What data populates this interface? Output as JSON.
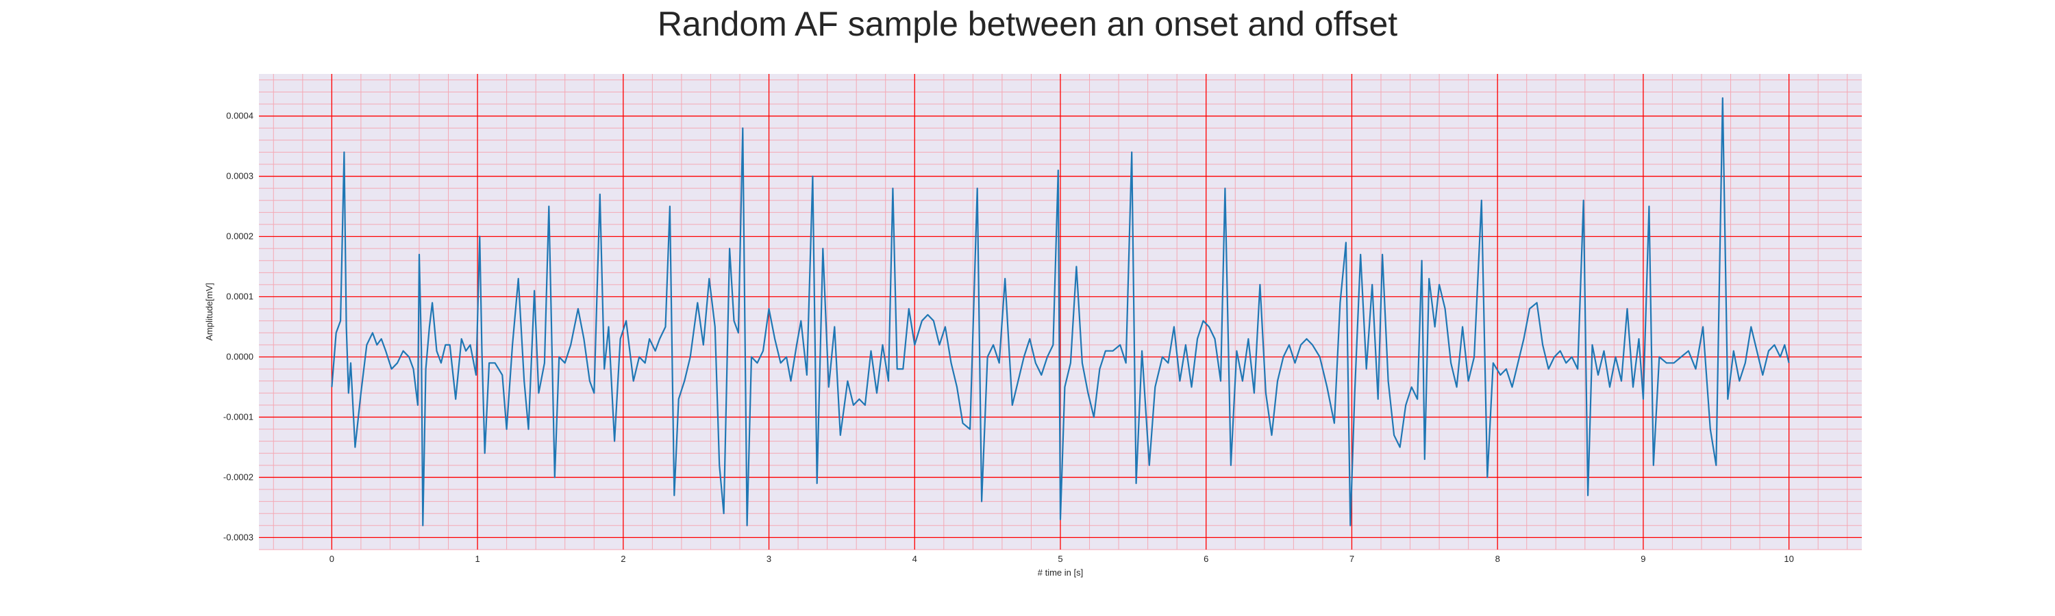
{
  "chart_data": {
    "type": "line",
    "title": "Random AF sample between an onset and offset",
    "xlabel": "# time in [s]",
    "ylabel": "Amplitude[mV]",
    "xlim": [
      -0.5,
      10.5
    ],
    "ylim": [
      -0.00032,
      0.00047
    ],
    "xticks": [
      0,
      1,
      2,
      3,
      4,
      5,
      6,
      7,
      8,
      9,
      10
    ],
    "yticks": [
      -0.0003,
      -0.0002,
      -0.0001,
      0.0,
      0.0001,
      0.0002,
      0.0003,
      0.0004
    ],
    "xtick_labels": [
      "0",
      "1",
      "2",
      "3",
      "4",
      "5",
      "6",
      "7",
      "8",
      "9",
      "10"
    ],
    "ytick_labels": [
      "-0.0003",
      "-0.0002",
      "-0.0001",
      "0.0000",
      "0.0001",
      "0.0002",
      "0.0003",
      "0.0004"
    ],
    "grid": true,
    "minor_grid": true,
    "colors": {
      "line": "#1f77b4",
      "major_grid": "#ff0000",
      "minor_grid": "#f4a8b4",
      "plot_bg": "#eae6f2"
    },
    "series": [
      {
        "values": [
          [
            0.0,
            -5e-05
          ],
          [
            0.03,
            4e-05
          ],
          [
            0.06,
            6e-05
          ],
          [
            0.085,
            0.00034
          ],
          [
            0.1,
            5e-05
          ],
          [
            0.115,
            -6e-05
          ],
          [
            0.13,
            -1e-05
          ],
          [
            0.16,
            -0.00015
          ],
          [
            0.2,
            -6e-05
          ],
          [
            0.24,
            2e-05
          ],
          [
            0.28,
            4e-05
          ],
          [
            0.31,
            2e-05
          ],
          [
            0.34,
            3e-05
          ],
          [
            0.37,
            1e-05
          ],
          [
            0.41,
            -2e-05
          ],
          [
            0.45,
            -1e-05
          ],
          [
            0.49,
            1e-05
          ],
          [
            0.53,
            0.0
          ],
          [
            0.56,
            -2e-05
          ],
          [
            0.59,
            -8e-05
          ],
          [
            0.6,
            0.00017
          ],
          [
            0.615,
            1e-05
          ],
          [
            0.625,
            -0.00028
          ],
          [
            0.645,
            -2e-05
          ],
          [
            0.67,
            5e-05
          ],
          [
            0.69,
            9e-05
          ],
          [
            0.72,
            1e-05
          ],
          [
            0.75,
            -1e-05
          ],
          [
            0.78,
            2e-05
          ],
          [
            0.81,
            2e-05
          ],
          [
            0.85,
            -7e-05
          ],
          [
            0.89,
            3e-05
          ],
          [
            0.92,
            1e-05
          ],
          [
            0.95,
            2e-05
          ],
          [
            0.99,
            -3e-05
          ],
          [
            1.015,
            0.0002
          ],
          [
            1.03,
            1e-05
          ],
          [
            1.05,
            -0.00016
          ],
          [
            1.08,
            -1e-05
          ],
          [
            1.12,
            -1e-05
          ],
          [
            1.17,
            -3e-05
          ],
          [
            1.2,
            -0.00012
          ],
          [
            1.24,
            2e-05
          ],
          [
            1.28,
            0.00013
          ],
          [
            1.32,
            -4e-05
          ],
          [
            1.35,
            -0.00012
          ],
          [
            1.39,
            0.00011
          ],
          [
            1.42,
            -6e-05
          ],
          [
            1.46,
            -1e-05
          ],
          [
            1.49,
            0.00025
          ],
          [
            1.53,
            -0.0002
          ],
          [
            1.56,
            0.0
          ],
          [
            1.6,
            -1e-05
          ],
          [
            1.64,
            2e-05
          ],
          [
            1.69,
            8e-05
          ],
          [
            1.73,
            3e-05
          ],
          [
            1.77,
            -4e-05
          ],
          [
            1.8,
            -6e-05
          ],
          [
            1.84,
            0.00027
          ],
          [
            1.87,
            -2e-05
          ],
          [
            1.9,
            5e-05
          ],
          [
            1.94,
            -0.00014
          ],
          [
            1.98,
            3e-05
          ],
          [
            2.02,
            6e-05
          ],
          [
            2.07,
            -4e-05
          ],
          [
            2.11,
            0.0
          ],
          [
            2.15,
            -1e-05
          ],
          [
            2.18,
            3e-05
          ],
          [
            2.22,
            1e-05
          ],
          [
            2.25,
            3e-05
          ],
          [
            2.29,
            5e-05
          ],
          [
            2.32,
            0.00025
          ],
          [
            2.35,
            -0.00023
          ],
          [
            2.38,
            -7e-05
          ],
          [
            2.42,
            -4e-05
          ],
          [
            2.46,
            0.0
          ],
          [
            2.51,
            9e-05
          ],
          [
            2.55,
            2e-05
          ],
          [
            2.59,
            0.00013
          ],
          [
            2.63,
            5e-05
          ],
          [
            2.66,
            -0.00018
          ],
          [
            2.69,
            -0.00026
          ],
          [
            2.73,
            0.00018
          ],
          [
            2.76,
            6e-05
          ],
          [
            2.79,
            4e-05
          ],
          [
            2.82,
            0.00038
          ],
          [
            2.85,
            -0.00028
          ],
          [
            2.88,
            0.0
          ],
          [
            2.92,
            -1e-05
          ],
          [
            2.96,
            1e-05
          ],
          [
            3.0,
            8e-05
          ],
          [
            3.04,
            3e-05
          ],
          [
            3.08,
            -1e-05
          ],
          [
            3.12,
            0.0
          ],
          [
            3.15,
            -4e-05
          ],
          [
            3.19,
            2e-05
          ],
          [
            3.22,
            6e-05
          ],
          [
            3.26,
            -3e-05
          ],
          [
            3.3,
            0.0003
          ],
          [
            3.33,
            -0.00021
          ],
          [
            3.37,
            0.00018
          ],
          [
            3.41,
            -5e-05
          ],
          [
            3.45,
            5e-05
          ],
          [
            3.49,
            -0.00013
          ],
          [
            3.54,
            -4e-05
          ],
          [
            3.58,
            -8e-05
          ],
          [
            3.62,
            -7e-05
          ],
          [
            3.66,
            -8e-05
          ],
          [
            3.7,
            1e-05
          ],
          [
            3.74,
            -6e-05
          ],
          [
            3.78,
            2e-05
          ],
          [
            3.82,
            -4e-05
          ],
          [
            3.85,
            0.00028
          ],
          [
            3.88,
            -2e-05
          ],
          [
            3.92,
            -2e-05
          ],
          [
            3.96,
            8e-05
          ],
          [
            4.0,
            2e-05
          ],
          [
            4.05,
            6e-05
          ],
          [
            4.09,
            7e-05
          ],
          [
            4.13,
            6e-05
          ],
          [
            4.17,
            2e-05
          ],
          [
            4.21,
            5e-05
          ],
          [
            4.25,
            -1e-05
          ],
          [
            4.29,
            -5e-05
          ],
          [
            4.33,
            -0.00011
          ],
          [
            4.38,
            -0.00012
          ],
          [
            4.43,
            0.00028
          ],
          [
            4.46,
            -0.00024
          ],
          [
            4.5,
            0.0
          ],
          [
            4.54,
            2e-05
          ],
          [
            4.58,
            -1e-05
          ],
          [
            4.62,
            0.00013
          ],
          [
            4.67,
            -8e-05
          ],
          [
            4.71,
            -4e-05
          ],
          [
            4.75,
            0.0
          ],
          [
            4.79,
            3e-05
          ],
          [
            4.83,
            -1e-05
          ],
          [
            4.87,
            -3e-05
          ],
          [
            4.91,
            0.0
          ],
          [
            4.95,
            2e-05
          ],
          [
            4.985,
            0.00031
          ],
          [
            5.0,
            -0.00027
          ],
          [
            5.03,
            -5e-05
          ],
          [
            5.07,
            -1e-05
          ],
          [
            5.11,
            0.00015
          ],
          [
            5.15,
            -1e-05
          ],
          [
            5.19,
            -6e-05
          ],
          [
            5.23,
            -0.0001
          ],
          [
            5.27,
            -2e-05
          ],
          [
            5.31,
            1e-05
          ],
          [
            5.36,
            1e-05
          ],
          [
            5.41,
            2e-05
          ],
          [
            5.45,
            -1e-05
          ],
          [
            5.49,
            0.00034
          ],
          [
            5.52,
            -0.00021
          ],
          [
            5.56,
            1e-05
          ],
          [
            5.61,
            -0.00018
          ],
          [
            5.65,
            -5e-05
          ],
          [
            5.7,
            0.0
          ],
          [
            5.74,
            -1e-05
          ],
          [
            5.78,
            5e-05
          ],
          [
            5.82,
            -4e-05
          ],
          [
            5.86,
            2e-05
          ],
          [
            5.9,
            -5e-05
          ],
          [
            5.94,
            3e-05
          ],
          [
            5.98,
            6e-05
          ],
          [
            6.02,
            5e-05
          ],
          [
            6.06,
            3e-05
          ],
          [
            6.1,
            -4e-05
          ],
          [
            6.13,
            0.00028
          ],
          [
            6.17,
            -0.00018
          ],
          [
            6.21,
            1e-05
          ],
          [
            6.25,
            -4e-05
          ],
          [
            6.29,
            3e-05
          ],
          [
            6.33,
            -6e-05
          ],
          [
            6.37,
            0.00012
          ],
          [
            6.41,
            -6e-05
          ],
          [
            6.45,
            -0.00013
          ],
          [
            6.49,
            -4e-05
          ],
          [
            6.53,
            0.0
          ],
          [
            6.57,
            2e-05
          ],
          [
            6.61,
            -1e-05
          ],
          [
            6.65,
            2e-05
          ],
          [
            6.69,
            3e-05
          ],
          [
            6.73,
            2e-05
          ],
          [
            6.78,
            0.0
          ],
          [
            6.83,
            -5e-05
          ],
          [
            6.88,
            -0.00011
          ],
          [
            6.92,
            9e-05
          ],
          [
            6.96,
            0.00019
          ],
          [
            6.99,
            -0.00028
          ],
          [
            7.02,
            -6e-05
          ],
          [
            7.06,
            0.00017
          ],
          [
            7.1,
            -2e-05
          ],
          [
            7.14,
            0.00012
          ],
          [
            7.18,
            -7e-05
          ],
          [
            7.21,
            0.00017
          ],
          [
            7.25,
            -4e-05
          ],
          [
            7.29,
            -0.00013
          ],
          [
            7.33,
            -0.00015
          ],
          [
            7.37,
            -8e-05
          ],
          [
            7.41,
            -5e-05
          ],
          [
            7.45,
            -7e-05
          ],
          [
            7.48,
            0.00016
          ],
          [
            7.5,
            -0.00017
          ],
          [
            7.53,
            0.00013
          ],
          [
            7.57,
            5e-05
          ],
          [
            7.6,
            0.00012
          ],
          [
            7.64,
            8e-05
          ],
          [
            7.68,
            -1e-05
          ],
          [
            7.72,
            -5e-05
          ],
          [
            7.76,
            5e-05
          ],
          [
            7.8,
            -4e-05
          ],
          [
            7.84,
            0.0
          ],
          [
            7.89,
            0.00026
          ],
          [
            7.93,
            -0.0002
          ],
          [
            7.97,
            -1e-05
          ],
          [
            8.02,
            -3e-05
          ],
          [
            8.06,
            -2e-05
          ],
          [
            8.1,
            -5e-05
          ],
          [
            8.14,
            -1e-05
          ],
          [
            8.18,
            3e-05
          ],
          [
            8.22,
            8e-05
          ],
          [
            8.27,
            9e-05
          ],
          [
            8.31,
            2e-05
          ],
          [
            8.35,
            -2e-05
          ],
          [
            8.39,
            0.0
          ],
          [
            8.43,
            1e-05
          ],
          [
            8.47,
            -1e-05
          ],
          [
            8.51,
            0.0
          ],
          [
            8.55,
            -2e-05
          ],
          [
            8.59,
            0.00026
          ],
          [
            8.62,
            -0.00023
          ],
          [
            8.65,
            2e-05
          ],
          [
            8.69,
            -3e-05
          ],
          [
            8.73,
            1e-05
          ],
          [
            8.77,
            -5e-05
          ],
          [
            8.81,
            0.0
          ],
          [
            8.85,
            -4e-05
          ],
          [
            8.89,
            8e-05
          ],
          [
            8.93,
            -5e-05
          ],
          [
            8.97,
            3e-05
          ],
          [
            9.0,
            -7e-05
          ],
          [
            9.04,
            0.00025
          ],
          [
            9.07,
            -0.00018
          ],
          [
            9.11,
            0.0
          ],
          [
            9.16,
            -1e-05
          ],
          [
            9.21,
            -1e-05
          ],
          [
            9.26,
            0.0
          ],
          [
            9.31,
            1e-05
          ],
          [
            9.36,
            -2e-05
          ],
          [
            9.41,
            5e-05
          ],
          [
            9.46,
            -0.00012
          ],
          [
            9.5,
            -0.00018
          ],
          [
            9.545,
            0.00043
          ],
          [
            9.58,
            -7e-05
          ],
          [
            9.62,
            1e-05
          ],
          [
            9.66,
            -4e-05
          ],
          [
            9.7,
            -1e-05
          ],
          [
            9.74,
            5e-05
          ],
          [
            9.78,
            1e-05
          ],
          [
            9.82,
            -3e-05
          ],
          [
            9.86,
            1e-05
          ],
          [
            9.9,
            2e-05
          ],
          [
            9.94,
            0.0
          ],
          [
            9.97,
            2e-05
          ],
          [
            10.0,
            -1e-05
          ]
        ]
      }
    ]
  }
}
